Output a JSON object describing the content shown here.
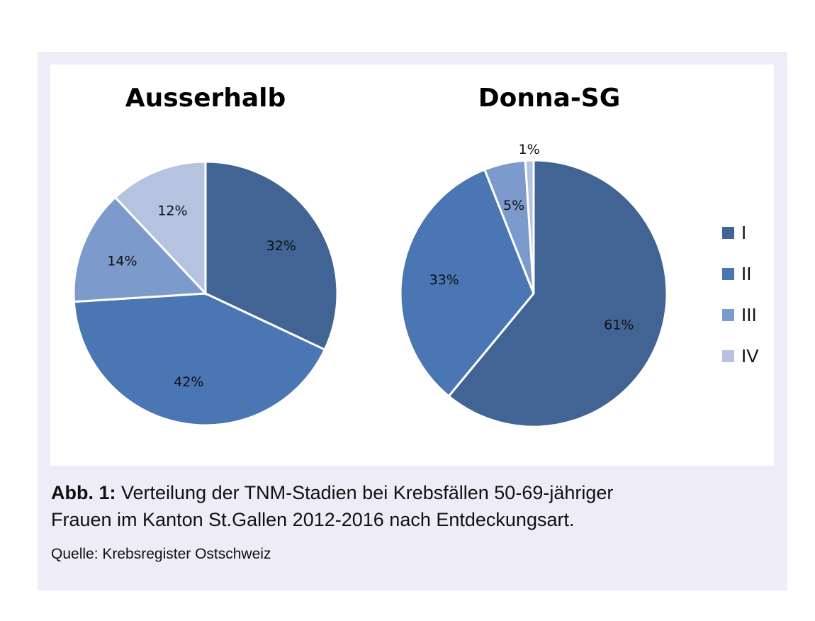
{
  "chart_data": [
    {
      "type": "pie",
      "title": "Ausserhalb",
      "categories": [
        "I",
        "II",
        "III",
        "IV"
      ],
      "values": [
        32,
        42,
        14,
        12
      ],
      "labels": [
        "32%",
        "42%",
        "14%",
        "12%"
      ]
    },
    {
      "type": "pie",
      "title": "Donna-SG",
      "categories": [
        "I",
        "II",
        "III",
        "IV"
      ],
      "values": [
        61,
        33,
        5,
        1
      ],
      "labels": [
        "61%",
        "33%",
        "5%",
        "1%"
      ]
    }
  ],
  "legend": {
    "placement": "right",
    "items": [
      {
        "label": "I",
        "color": "#416494"
      },
      {
        "label": "II",
        "color": "#4a76b3"
      },
      {
        "label": "III",
        "color": "#7c9bcc"
      },
      {
        "label": "IV",
        "color": "#b5c3e1"
      }
    ]
  },
  "caption": {
    "prefix": "Abb. 1:",
    "text_line1": " Verteilung der TNM-Stadien bei Krebsfällen 50-69-jähriger",
    "text_line2": "Frauen im Kanton St.Gallen 2012-2016 nach Entdeckungsart.",
    "source": "Quelle: Krebsregister Ostschweiz"
  }
}
